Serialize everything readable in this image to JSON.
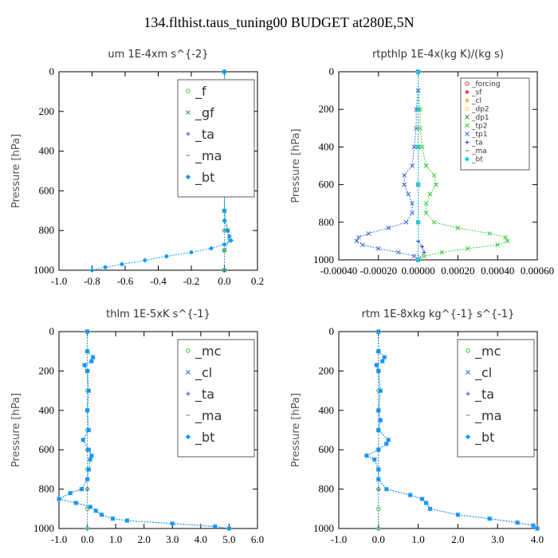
{
  "page": {
    "title": "134.flthist.taus_tuning00  BUDGET at280E,5N"
  },
  "chart_data": [
    {
      "type": "line",
      "title": "um  1E-4xm s^{-2}",
      "ylabel": "Pressure [hPa]",
      "xlim": [
        -1.0,
        0.2
      ],
      "ylim": [
        1000,
        0
      ],
      "xticks": [
        "-1.0",
        "-0.8",
        "-0.6",
        "-0.4",
        "-0.2",
        "0.0",
        "0.2"
      ],
      "xtick_values": [
        -1.0,
        -0.8,
        -0.6,
        -0.4,
        -0.2,
        0.0,
        0.2
      ],
      "yticks": [
        "0",
        "200",
        "400",
        "600",
        "800",
        "1000"
      ],
      "ytick_values": [
        0,
        200,
        400,
        600,
        800,
        1000
      ],
      "legend_position": "top-right",
      "legend_size": "large",
      "series": [
        {
          "name": "_f",
          "color": "#33cc33",
          "marker": "circle",
          "p": [
            0,
            100,
            200,
            300,
            400,
            500,
            600,
            700,
            800,
            900,
            1000
          ],
          "x": [
            0.0,
            0.0,
            0.0,
            0.0,
            0.0,
            0.0,
            0.0,
            0.0,
            0.0,
            0.0,
            0.0
          ]
        },
        {
          "name": "_gf",
          "color": "#339966",
          "marker": "x",
          "p": [
            0,
            100,
            150,
            200,
            300,
            400,
            500,
            600,
            700,
            800,
            850,
            900,
            1000
          ],
          "x": [
            0.0,
            0.0,
            0.02,
            0.0,
            0.0,
            0.0,
            0.0,
            0.0,
            0.0,
            0.02,
            0.03,
            0.0,
            0.0
          ]
        },
        {
          "name": "_ta",
          "color": "#3333cc",
          "marker": "plus",
          "p": [
            0,
            200,
            400,
            600,
            800,
            1000
          ],
          "x": [
            0.0,
            0.0,
            0.0,
            0.0,
            0.0,
            0.0
          ]
        },
        {
          "name": "_ma",
          "color": "#6699cc",
          "marker": "dash",
          "p": [
            0,
            200,
            400,
            600,
            800,
            1000
          ],
          "x": [
            0.0,
            0.0,
            0.0,
            0.0,
            0.0,
            0.0
          ]
        },
        {
          "name": "_bt",
          "color": "#0099ff",
          "marker": "diamond",
          "p": [
            0,
            100,
            150,
            200,
            300,
            400,
            500,
            600,
            700,
            750,
            800,
            830,
            850,
            870,
            890,
            910,
            930,
            950,
            970,
            985,
            1000
          ],
          "x": [
            0.0,
            0.0,
            0.03,
            0.0,
            0.0,
            0.0,
            0.0,
            0.0,
            0.0,
            0.0,
            0.02,
            0.03,
            0.04,
            0.0,
            -0.08,
            -0.2,
            -0.35,
            -0.48,
            -0.62,
            -0.72,
            -0.8
          ]
        }
      ]
    },
    {
      "type": "line",
      "title": "rtpthlp  1E-4x(kg K)/(kg s)",
      "ylabel": "Pressure [hPa]",
      "xlim": [
        -0.0004,
        0.0006
      ],
      "ylim": [
        1000,
        0
      ],
      "xticks": [
        "-0.00040",
        "-0.00020",
        "0.00000",
        "0.00020",
        "0.00040",
        "0.00060"
      ],
      "xtick_values": [
        -0.0004,
        -0.0002,
        0.0,
        0.0002,
        0.0004,
        0.0006
      ],
      "yticks": [
        "0",
        "200",
        "400",
        "600",
        "800",
        "1000"
      ],
      "ytick_values": [
        0,
        200,
        400,
        600,
        800,
        1000
      ],
      "legend_position": "top-right",
      "legend_size": "small",
      "series": [
        {
          "name": "_forcing",
          "color": "#cc3333",
          "marker": "circle",
          "p": [
            0,
            200,
            400,
            600,
            800,
            1000
          ],
          "x": [
            0.0,
            0.0,
            0.0,
            0.0,
            0.0,
            0.0
          ]
        },
        {
          "name": "_sf",
          "color": "#ff3333",
          "marker": "star",
          "p": [
            0,
            200,
            400,
            600,
            800,
            1000
          ],
          "x": [
            0.0,
            0.0,
            0.0,
            0.0,
            0.0,
            0.0
          ]
        },
        {
          "name": "_cl",
          "color": "#ffaa33",
          "marker": "star",
          "p": [
            0,
            200,
            400,
            600,
            800,
            1000
          ],
          "x": [
            0.0,
            0.0,
            0.0,
            0.0,
            0.0,
            0.0
          ]
        },
        {
          "name": "_dp2",
          "color": "#ffcc33",
          "marker": "circle",
          "p": [
            0,
            200,
            400,
            600,
            800,
            1000
          ],
          "x": [
            0.0,
            0.0,
            0.0,
            0.0,
            0.0,
            0.0
          ]
        },
        {
          "name": "_dp1",
          "color": "#339933",
          "marker": "x",
          "p": [
            0,
            200,
            400,
            600,
            800,
            1000
          ],
          "x": [
            0.0,
            0.0,
            0.0,
            0.0,
            0.0,
            0.0
          ]
        },
        {
          "name": "_tp2",
          "color": "#33cc33",
          "marker": "x",
          "p": [
            0,
            100,
            200,
            300,
            400,
            500,
            550,
            600,
            650,
            700,
            750,
            800,
            830,
            860,
            880,
            900,
            920,
            940,
            960,
            980,
            1000
          ],
          "x": [
            0.0,
            0.0,
            1e-05,
            1e-05,
            2e-05,
            4e-05,
            8e-05,
            9e-05,
            6e-05,
            4e-05,
            4e-05,
            8e-05,
            0.0002,
            0.00036,
            0.00044,
            0.00045,
            0.0004,
            0.00025,
            0.00012,
            3e-05,
            0.0
          ]
        },
        {
          "name": "_tp1",
          "color": "#3366cc",
          "marker": "x",
          "p": [
            0,
            100,
            200,
            300,
            400,
            500,
            550,
            600,
            650,
            700,
            750,
            800,
            830,
            860,
            880,
            900,
            920,
            940,
            960,
            980,
            1000
          ],
          "x": [
            0.0,
            0.0,
            -1e-05,
            -1e-05,
            -2e-05,
            -3e-05,
            -7e-05,
            -7e-05,
            -5e-05,
            -3e-05,
            -3e-05,
            -6e-05,
            -0.00015,
            -0.00025,
            -0.0003,
            -0.00031,
            -0.00028,
            -0.0002,
            -0.0001,
            -2e-05,
            0.0
          ]
        },
        {
          "name": "_ta",
          "color": "#3333cc",
          "marker": "plus",
          "p": [
            0,
            200,
            400,
            600,
            800,
            900,
            930,
            960,
            1000
          ],
          "x": [
            0.0,
            0.0,
            0.0,
            0.0,
            0.0,
            0.0,
            2e-05,
            3e-05,
            0.0
          ]
        },
        {
          "name": "_ma",
          "color": "#6699cc",
          "marker": "dash",
          "p": [
            0,
            200,
            400,
            600,
            800,
            1000
          ],
          "x": [
            0.0,
            0.0,
            0.0,
            0.0,
            0.0,
            0.0
          ]
        },
        {
          "name": "_bt",
          "color": "#00ccff",
          "marker": "diamond",
          "p": [
            0,
            200,
            400,
            600,
            800,
            1000
          ],
          "x": [
            0.0,
            0.0,
            0.0,
            0.0,
            0.0,
            0.0
          ]
        }
      ]
    },
    {
      "type": "line",
      "title": "thlm  1E-5xK s^{-1}",
      "ylabel": "Pressure [hPa]",
      "xlim": [
        -1.0,
        6.0
      ],
      "ylim": [
        1000,
        0
      ],
      "xticks": [
        "-1.0",
        "0.0",
        "1.0",
        "2.0",
        "3.0",
        "4.0",
        "5.0",
        "6.0"
      ],
      "xtick_values": [
        -1.0,
        0.0,
        1.0,
        2.0,
        3.0,
        4.0,
        5.0,
        6.0
      ],
      "yticks": [
        "0",
        "200",
        "400",
        "600",
        "800",
        "1000"
      ],
      "ytick_values": [
        0,
        200,
        400,
        600,
        800,
        1000
      ],
      "legend_position": "top-right",
      "legend_size": "large",
      "series": [
        {
          "name": "_mc",
          "color": "#33cc33",
          "marker": "circle",
          "p": [
            0,
            100,
            200,
            300,
            400,
            500,
            600,
            700,
            800,
            900,
            1000
          ],
          "x": [
            0.0,
            0.0,
            0.0,
            0.0,
            0.0,
            0.0,
            0.0,
            0.0,
            0.0,
            0.0,
            0.0
          ]
        },
        {
          "name": "_cl",
          "color": "#3366cc",
          "marker": "x",
          "p": [
            0,
            100,
            130,
            150,
            170,
            200,
            300,
            400,
            500,
            550,
            600,
            630,
            650,
            700,
            750,
            800,
            820,
            850,
            870,
            890,
            910,
            930,
            950,
            960,
            975,
            990,
            1000
          ],
          "x": [
            0.0,
            0.0,
            0.2,
            0.15,
            -0.1,
            0.0,
            0.05,
            0.0,
            0.05,
            -0.15,
            0.05,
            0.15,
            0.1,
            0.05,
            0.0,
            -0.2,
            -0.6,
            -1.0,
            -0.4,
            0.1,
            0.3,
            0.5,
            0.9,
            1.4,
            3.0,
            4.5,
            5.0
          ]
        },
        {
          "name": "_ta",
          "color": "#3333cc",
          "marker": "plus",
          "p": [
            0,
            200,
            400,
            600,
            800,
            1000
          ],
          "x": [
            0.0,
            0.0,
            0.0,
            0.0,
            0.0,
            0.0
          ]
        },
        {
          "name": "_ma",
          "color": "#6699cc",
          "marker": "dash",
          "p": [
            0,
            200,
            400,
            600,
            800,
            1000
          ],
          "x": [
            0.0,
            0.0,
            0.0,
            0.0,
            0.0,
            0.0
          ]
        },
        {
          "name": "_bt",
          "color": "#0099ff",
          "marker": "diamond",
          "p": [
            0,
            100,
            130,
            150,
            170,
            200,
            300,
            400,
            500,
            550,
            600,
            630,
            650,
            700,
            750,
            800,
            820,
            850,
            870,
            890,
            910,
            930,
            950,
            960,
            975,
            990,
            1000
          ],
          "x": [
            0.0,
            0.0,
            0.2,
            0.15,
            -0.1,
            0.0,
            0.05,
            0.0,
            0.05,
            -0.15,
            0.05,
            0.15,
            0.1,
            0.05,
            0.0,
            -0.2,
            -0.6,
            -1.0,
            -0.4,
            0.1,
            0.3,
            0.5,
            0.9,
            1.4,
            3.0,
            4.5,
            5.0
          ]
        }
      ]
    },
    {
      "type": "line",
      "title": "rtm  1E-8xkg kg^{-1} s^{-1}",
      "ylabel": "Pressure [hPa]",
      "xlim": [
        -1.0,
        4.0
      ],
      "ylim": [
        1000,
        0
      ],
      "xticks": [
        "-1.0",
        "0.0",
        "1.0",
        "2.0",
        "3.0",
        "4.0"
      ],
      "xtick_values": [
        -1.0,
        0.0,
        1.0,
        2.0,
        3.0,
        4.0
      ],
      "yticks": [
        "0",
        "200",
        "400",
        "600",
        "800",
        "1000"
      ],
      "ytick_values": [
        0,
        200,
        400,
        600,
        800,
        1000
      ],
      "legend_position": "top-right",
      "legend_size": "large",
      "series": [
        {
          "name": "_mc",
          "color": "#33cc33",
          "marker": "circle",
          "p": [
            0,
            100,
            200,
            300,
            400,
            500,
            600,
            700,
            800,
            900,
            1000
          ],
          "x": [
            0.0,
            0.0,
            0.0,
            0.0,
            0.0,
            0.0,
            0.0,
            0.0,
            0.0,
            0.0,
            0.0
          ]
        },
        {
          "name": "_cl",
          "color": "#3366cc",
          "marker": "x",
          "p": [
            0,
            100,
            130,
            150,
            170,
            200,
            300,
            400,
            450,
            500,
            550,
            570,
            600,
            630,
            650,
            700,
            750,
            800,
            830,
            850,
            870,
            900,
            930,
            950,
            970,
            985,
            1000
          ],
          "x": [
            0.0,
            0.0,
            0.15,
            0.1,
            -0.05,
            0.0,
            0.05,
            0.0,
            0.05,
            0.0,
            0.25,
            0.2,
            0.0,
            -0.3,
            -0.1,
            0.0,
            0.0,
            0.2,
            0.8,
            1.1,
            1.2,
            1.3,
            2.0,
            2.8,
            3.5,
            3.9,
            4.0
          ]
        },
        {
          "name": "_ta",
          "color": "#3333cc",
          "marker": "plus",
          "p": [
            0,
            200,
            400,
            600,
            800,
            1000
          ],
          "x": [
            0.0,
            0.0,
            0.0,
            0.0,
            0.0,
            0.0
          ]
        },
        {
          "name": "_ma",
          "color": "#6699cc",
          "marker": "dash",
          "p": [
            0,
            200,
            400,
            600,
            800,
            1000
          ],
          "x": [
            0.0,
            0.0,
            0.0,
            0.0,
            0.0,
            0.0
          ]
        },
        {
          "name": "_bt",
          "color": "#0099ff",
          "marker": "diamond",
          "p": [
            0,
            100,
            130,
            150,
            170,
            200,
            300,
            400,
            450,
            500,
            550,
            570,
            600,
            630,
            650,
            700,
            750,
            800,
            830,
            850,
            870,
            900,
            930,
            950,
            970,
            985,
            1000
          ],
          "x": [
            0.0,
            0.0,
            0.15,
            0.1,
            -0.05,
            0.0,
            0.05,
            0.0,
            0.05,
            0.0,
            0.25,
            0.2,
            0.0,
            -0.3,
            -0.1,
            0.0,
            0.0,
            0.2,
            0.8,
            1.1,
            1.2,
            1.3,
            2.0,
            2.8,
            3.5,
            3.9,
            4.0
          ]
        }
      ]
    }
  ]
}
